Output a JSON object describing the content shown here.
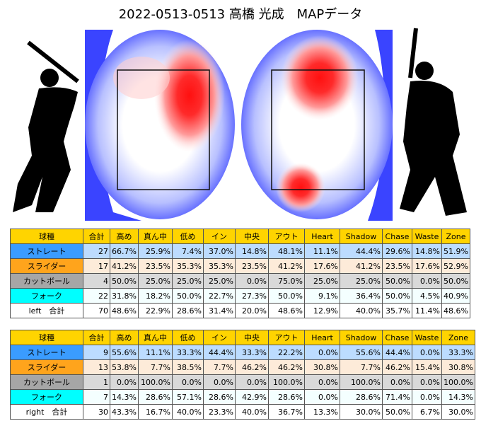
{
  "header": {
    "title": "2022-0513-0513 高橋 光成　MAPデータ"
  },
  "tables": [
    {
      "columns": [
        "球種",
        "合計",
        "高め",
        "真ん中",
        "低め",
        "イン",
        "中央",
        "アウト",
        "Heart",
        "Shadow",
        "Chase",
        "Waste",
        "Zone"
      ],
      "rows": [
        [
          "ストレート",
          "27",
          "66.7%",
          "25.9%",
          "7.4%",
          "37.0%",
          "14.8%",
          "48.1%",
          "11.1%",
          "44.4%",
          "29.6%",
          "14.8%",
          "51.9%"
        ],
        [
          "スライダー",
          "17",
          "41.2%",
          "23.5%",
          "35.3%",
          "35.3%",
          "23.5%",
          "41.2%",
          "17.6%",
          "41.2%",
          "23.5%",
          "17.6%",
          "52.9%"
        ],
        [
          "カットボール",
          "4",
          "50.0%",
          "25.0%",
          "25.0%",
          "25.0%",
          "0.0%",
          "75.0%",
          "25.0%",
          "25.0%",
          "50.0%",
          "0.0%",
          "50.0%"
        ],
        [
          "フォーク",
          "22",
          "31.8%",
          "18.2%",
          "50.0%",
          "22.7%",
          "27.3%",
          "50.0%",
          "9.1%",
          "36.4%",
          "50.0%",
          "4.5%",
          "40.9%"
        ],
        [
          "left　合計",
          "70",
          "48.6%",
          "22.9%",
          "28.6%",
          "31.4%",
          "20.0%",
          "48.6%",
          "12.9%",
          "40.0%",
          "35.7%",
          "11.4%",
          "48.6%"
        ]
      ]
    },
    {
      "columns": [
        "球種",
        "合計",
        "高め",
        "真ん中",
        "低め",
        "イン",
        "中央",
        "アウト",
        "Heart",
        "Shadow",
        "Chase",
        "Waste",
        "Zone"
      ],
      "rows": [
        [
          "ストレート",
          "9",
          "55.6%",
          "11.1%",
          "33.3%",
          "44.4%",
          "33.3%",
          "22.2%",
          "0.0%",
          "55.6%",
          "44.4%",
          "0.0%",
          "33.3%"
        ],
        [
          "スライダー",
          "13",
          "53.8%",
          "7.7%",
          "38.5%",
          "7.7%",
          "46.2%",
          "46.2%",
          "30.8%",
          "7.7%",
          "46.2%",
          "15.4%",
          "30.8%"
        ],
        [
          "カットボール",
          "1",
          "0.0%",
          "100.0%",
          "0.0%",
          "0.0%",
          "0.0%",
          "100.0%",
          "0.0%",
          "100.0%",
          "0.0%",
          "0.0%",
          "100.0%"
        ],
        [
          "フォーク",
          "7",
          "14.3%",
          "28.6%",
          "57.1%",
          "28.6%",
          "42.9%",
          "28.6%",
          "0.0%",
          "28.6%",
          "71.4%",
          "0.0%",
          "14.3%"
        ],
        [
          "right　合計",
          "30",
          "43.3%",
          "16.7%",
          "40.0%",
          "23.3%",
          "40.0%",
          "36.7%",
          "13.3%",
          "30.0%",
          "50.0%",
          "6.7%",
          "30.0%"
        ]
      ]
    }
  ]
}
